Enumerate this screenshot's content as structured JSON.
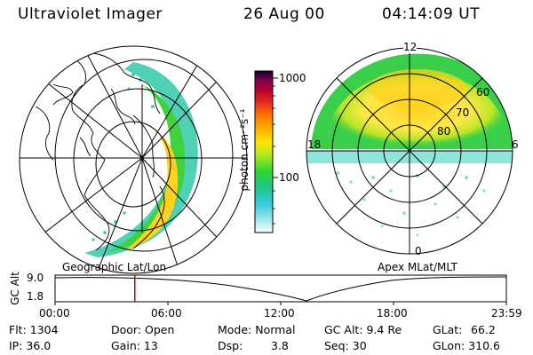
{
  "header": {
    "instrument": "Ultraviolet Imager",
    "date": "26 Aug 00",
    "time": "04:14:09 UT"
  },
  "colorbar": {
    "label": "photon cm⁻²s⁻¹",
    "ticks": [
      "1000",
      "100"
    ],
    "scale": "log",
    "colors": [
      "#ffffff",
      "#7fe6e6",
      "#36c9e0",
      "#22c58a",
      "#2cd634",
      "#b3e61e",
      "#ffe600",
      "#ffb000",
      "#ff7a00",
      "#e8301c",
      "#b8002e",
      "#800050",
      "#2a0030"
    ]
  },
  "geo_map": {
    "title": "Geographic Lat/Lon"
  },
  "polar_map": {
    "title": "Apex MLat/MLT",
    "mlt_labels": {
      "top": "12",
      "left": "18",
      "right": "6",
      "bottom": "0"
    },
    "lat_labels": [
      "60",
      "70",
      "80"
    ]
  },
  "timeline": {
    "ylabel": "GC Alt",
    "ytop": "9.0",
    "ybottom": "1.8",
    "xticks": [
      "00:00",
      "06:00",
      "12:00",
      "18:00",
      "23:59"
    ],
    "marker_hour": 4.24,
    "marker_color": "#cc0000"
  },
  "info": {
    "flt": "Flt: 1304",
    "ip": "IP: 36.0",
    "door": "Door: Open",
    "gain": "Gain: 13",
    "mode": "Mode: Normal",
    "dsp": "Dsp:",
    "dsp_val": "3.8",
    "gcalt": "GC Alt: 9.4 Re",
    "seq": "Seq: 30",
    "glat": "GLat:",
    "glat_val": "66.2",
    "glon": "GLon: 310.6"
  }
}
